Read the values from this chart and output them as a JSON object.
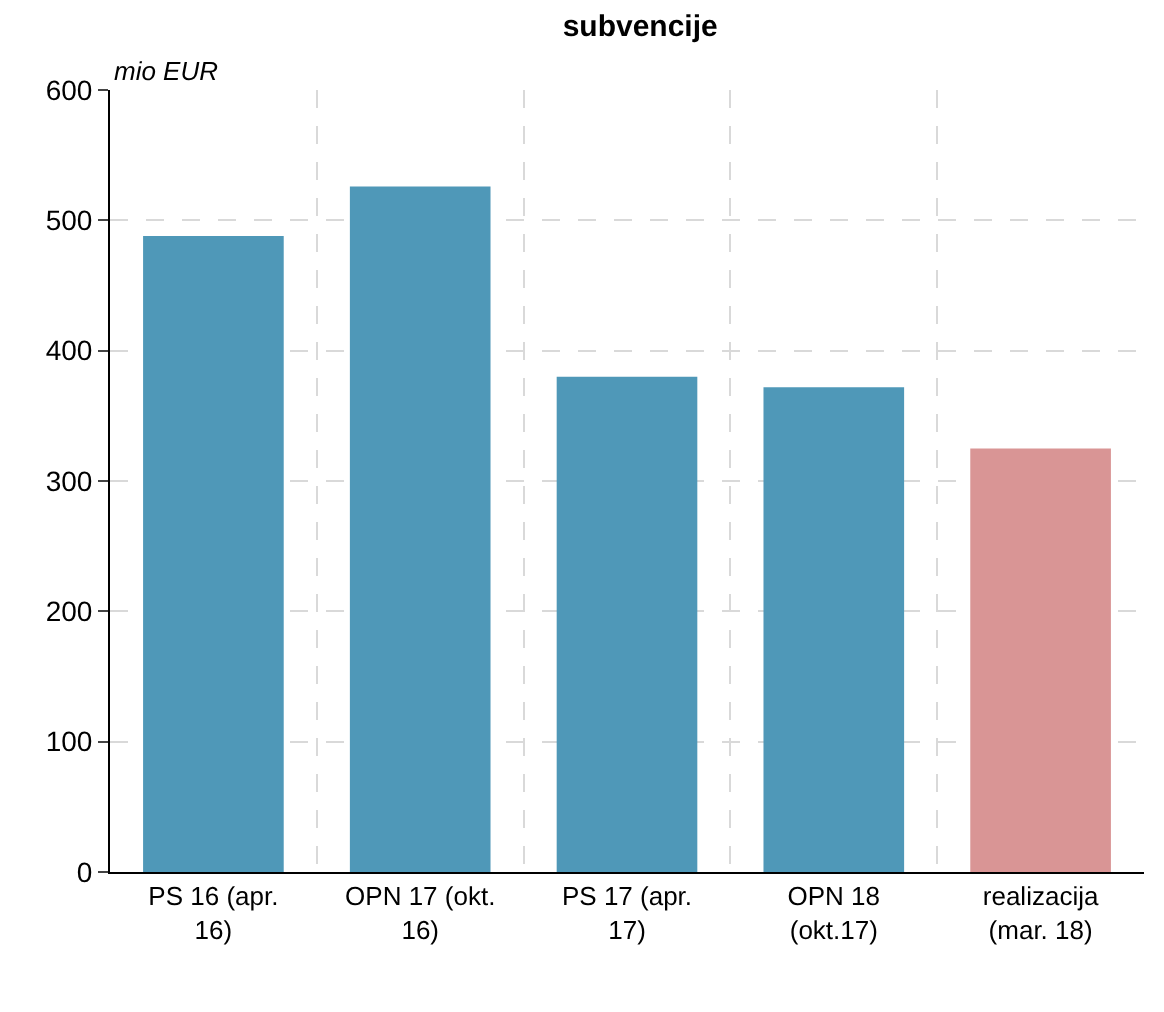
{
  "chart_data": {
    "type": "bar",
    "title": "subvencije",
    "categories": [
      "PS 16 (apr. 16)",
      "OPN 17 (okt. 16)",
      "PS 17 (apr. 17)",
      "OPN 18 (okt.17)",
      "realizacija (mar. 18)"
    ],
    "values": [
      488,
      526,
      380,
      372,
      325
    ],
    "colors": [
      "#4f98b8",
      "#4f98b8",
      "#4f98b8",
      "#4f98b8",
      "#d99595"
    ],
    "annotations": [
      "mio EUR"
    ],
    "ylim": [
      0,
      600
    ],
    "yticks": [
      0,
      100,
      200,
      300,
      400,
      500,
      600
    ],
    "grid": true
  }
}
